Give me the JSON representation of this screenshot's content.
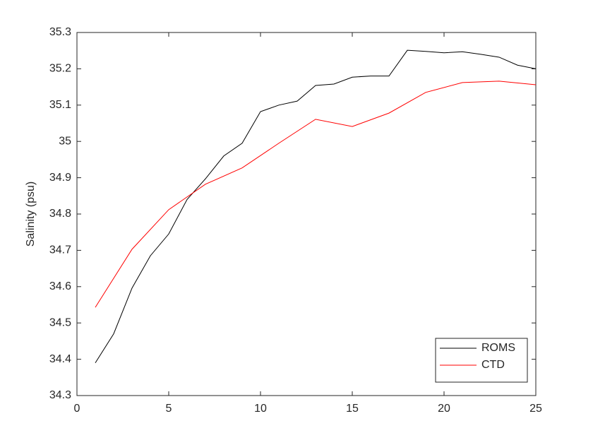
{
  "chart_data": {
    "type": "line",
    "y_label": "Salinity (psu)",
    "xlim": [
      0,
      25
    ],
    "xticks": [
      0,
      5,
      10,
      15,
      20,
      25
    ],
    "ylim": [
      34.3,
      35.3
    ],
    "yticks": [
      34.3,
      34.4,
      34.5,
      34.6,
      34.7,
      34.8,
      34.9,
      35,
      35.1,
      35.2,
      35.3
    ],
    "grid": false,
    "legend_position": "southeast",
    "series": [
      {
        "name": "ROMS",
        "color": "#000000",
        "x": [
          1,
          2,
          3,
          4,
          5,
          6,
          7,
          8,
          9,
          10,
          11,
          12,
          13,
          14,
          15,
          16,
          17,
          18,
          19,
          20,
          21,
          22,
          23,
          24,
          25
        ],
        "values": [
          34.39,
          34.47,
          34.596,
          34.685,
          34.745,
          34.84,
          34.897,
          34.96,
          34.995,
          35.082,
          35.1,
          35.111,
          35.154,
          35.158,
          35.177,
          35.18,
          35.18,
          35.251,
          35.248,
          35.244,
          35.247,
          35.24,
          35.232,
          35.21,
          35.2
        ]
      },
      {
        "name": "CTD",
        "color": "#ff0000",
        "x": [
          1,
          3,
          5,
          7,
          9,
          11,
          13,
          15,
          17,
          19,
          21,
          23,
          25
        ],
        "values": [
          34.543,
          34.703,
          34.812,
          34.882,
          34.927,
          34.995,
          35.061,
          35.041,
          35.078,
          35.135,
          35.162,
          35.166,
          35.156
        ]
      }
    ]
  }
}
